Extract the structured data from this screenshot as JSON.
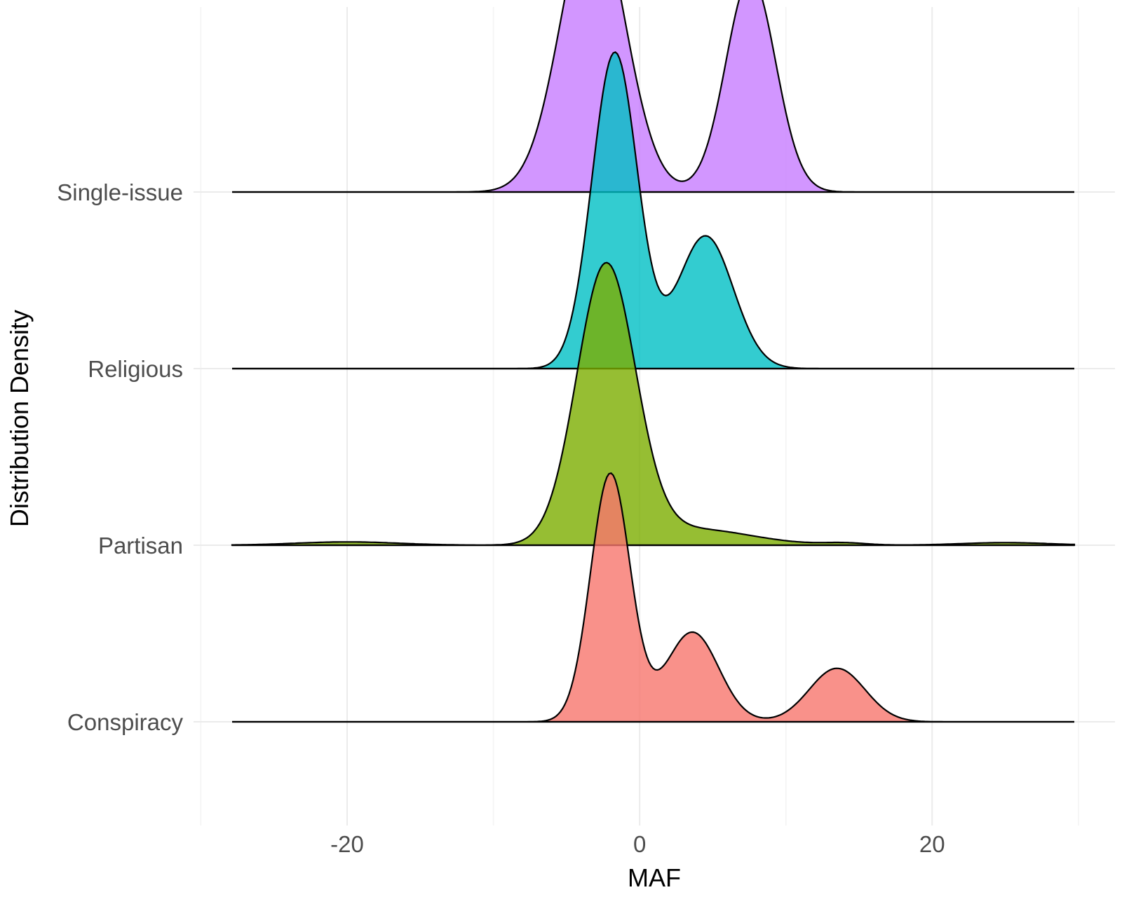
{
  "chart_data": {
    "type": "area",
    "subtype": "ridgeline",
    "title": "",
    "xlabel": "MAF",
    "ylabel": "Distribution Density",
    "xlim": [
      -30.5,
      32.5
    ],
    "x_ticks": [
      -20,
      0,
      20
    ],
    "x_tick_labels": [
      "-20",
      "0",
      "20"
    ],
    "categories": [
      "Single-issue",
      "Religious",
      "Partisan",
      "Conspiracy"
    ],
    "grid": true,
    "legend": "none",
    "ridge_height": "relative scale 1.6",
    "series": [
      {
        "name": "Single-issue",
        "color": "#C77CFF",
        "density_peaks": [
          {
            "mean": -3.2,
            "sd": 2.2,
            "weight": 0.63
          },
          {
            "mean": 7.6,
            "sd": 1.7,
            "weight": 0.37
          }
        ],
        "max_height": 1.0
      },
      {
        "name": "Religious",
        "color": "#00BFC4",
        "density_peaks": [
          {
            "mean": -1.7,
            "sd": 1.55,
            "weight": 0.66
          },
          {
            "mean": 4.5,
            "sd": 1.9,
            "weight": 0.34
          }
        ],
        "max_height": 1.12
      },
      {
        "name": "Partisan",
        "color": "#7CAE00",
        "density_peaks": [
          {
            "mean": -2.3,
            "sd": 2.0,
            "weight": 0.86
          },
          {
            "mean": 3.6,
            "sd": 4.0,
            "weight": 0.1
          },
          {
            "mean": -20,
            "sd": 3.5,
            "weight": 0.018
          },
          {
            "mean": 14,
            "sd": 1.5,
            "weight": 0.005
          },
          {
            "mean": 25,
            "sd": 3.0,
            "weight": 0.012
          }
        ],
        "max_height": 1.0
      },
      {
        "name": "Conspiracy",
        "color": "#F8766D",
        "density_peaks": [
          {
            "mean": -2.0,
            "sd": 1.35,
            "weight": 0.56
          },
          {
            "mean": 3.6,
            "sd": 1.8,
            "weight": 0.27
          },
          {
            "mean": 13.5,
            "sd": 1.9,
            "weight": 0.17
          }
        ],
        "max_height": 0.88
      }
    ]
  }
}
